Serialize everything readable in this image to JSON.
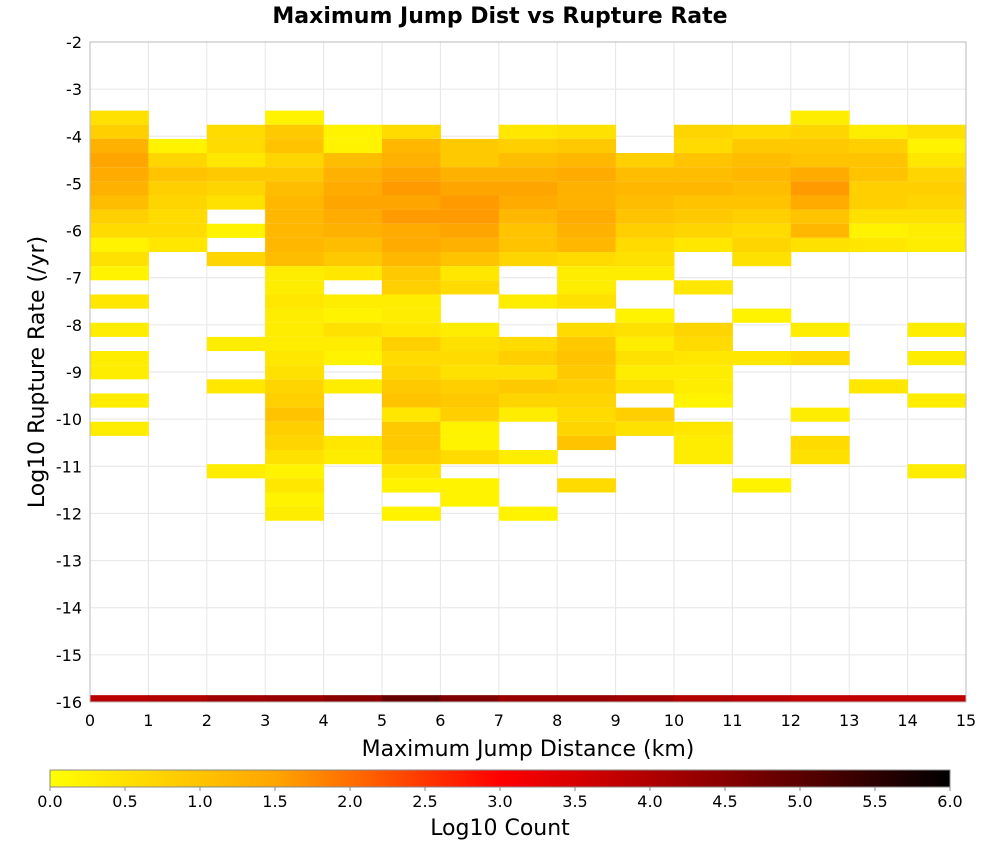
{
  "chart_data": {
    "type": "heatmap",
    "title": "Maximum Jump Dist vs Rupture Rate",
    "xlabel": "Maximum Jump Distance (km)",
    "ylabel": "Log10 Rupture Rate (/yr)",
    "xlim": [
      0,
      15
    ],
    "ylim": [
      -16,
      -2
    ],
    "x_ticks": [
      "0",
      "1",
      "2",
      "3",
      "4",
      "5",
      "6",
      "7",
      "8",
      "9",
      "10",
      "11",
      "12",
      "13",
      "14",
      "15"
    ],
    "y_ticks": [
      "-2",
      "-3",
      "-4",
      "-5",
      "-6",
      "-7",
      "-8",
      "-9",
      "-10",
      "-11",
      "-12",
      "-13",
      "-14",
      "-15",
      "-16"
    ],
    "grid": true,
    "x_bin_width": 1,
    "y_bin_height": 0.29,
    "colorbar": {
      "label": "Log10 Count",
      "range": [
        0,
        6
      ],
      "ticks": [
        "0.0",
        "0.5",
        "1.0",
        "1.5",
        "2.0",
        "2.5",
        "3.0",
        "3.5",
        "4.0",
        "4.5",
        "5.0",
        "5.5",
        "6.0"
      ],
      "colors": [
        "#ffff00",
        "#ffa500",
        "#ff0000",
        "#880000",
        "#000000"
      ]
    },
    "cells": [
      {
        "x": 0,
        "bins": [
          [
            -3.6,
            0.5
          ],
          [
            -3.9,
            0.8
          ],
          [
            -4.2,
            1.3
          ],
          [
            -4.5,
            1.5
          ],
          [
            -4.8,
            1.4
          ],
          [
            -5.1,
            1.3
          ],
          [
            -5.4,
            1.1
          ],
          [
            -5.7,
            0.8
          ],
          [
            -6.0,
            0.6
          ],
          [
            -6.3,
            0.2
          ],
          [
            -6.6,
            0.5
          ],
          [
            -6.9,
            0.2
          ],
          [
            -7.5,
            0.4
          ],
          [
            -8.1,
            0.3
          ],
          [
            -8.7,
            0.3
          ],
          [
            -9.0,
            0.3
          ],
          [
            -9.6,
            0.3
          ],
          [
            -10.2,
            0.3
          ]
        ]
      },
      {
        "x": 1,
        "bins": [
          [
            -4.2,
            0.2
          ],
          [
            -4.5,
            0.7
          ],
          [
            -4.8,
            1.0
          ],
          [
            -5.1,
            0.8
          ],
          [
            -5.4,
            0.7
          ],
          [
            -5.7,
            0.6
          ],
          [
            -6.0,
            0.6
          ],
          [
            -6.3,
            0.4
          ]
        ]
      },
      {
        "x": 2,
        "bins": [
          [
            -3.9,
            0.6
          ],
          [
            -4.2,
            0.6
          ],
          [
            -4.5,
            0.4
          ],
          [
            -4.8,
            0.9
          ],
          [
            -5.1,
            0.7
          ],
          [
            -5.4,
            0.5
          ],
          [
            -6.0,
            0.2
          ],
          [
            -6.6,
            0.7
          ],
          [
            -8.4,
            0.3
          ],
          [
            -9.3,
            0.4
          ],
          [
            -11.1,
            0.3
          ]
        ]
      },
      {
        "x": 3,
        "bins": [
          [
            -3.6,
            0.2
          ],
          [
            -3.9,
            0.9
          ],
          [
            -4.2,
            1.0
          ],
          [
            -4.5,
            0.7
          ],
          [
            -4.8,
            0.9
          ],
          [
            -5.1,
            1.1
          ],
          [
            -5.4,
            1.2
          ],
          [
            -5.7,
            1.2
          ],
          [
            -6.0,
            1.2
          ],
          [
            -6.3,
            1.2
          ],
          [
            -6.6,
            1.1
          ],
          [
            -6.9,
            0.3
          ],
          [
            -7.2,
            0.3
          ],
          [
            -7.5,
            0.4
          ],
          [
            -7.8,
            0.3
          ],
          [
            -8.1,
            0.3
          ],
          [
            -8.4,
            0.3
          ],
          [
            -8.7,
            0.4
          ],
          [
            -9.0,
            0.5
          ],
          [
            -9.3,
            0.7
          ],
          [
            -9.6,
            0.8
          ],
          [
            -9.9,
            1.0
          ],
          [
            -10.2,
            0.8
          ],
          [
            -10.5,
            0.7
          ],
          [
            -10.8,
            0.5
          ],
          [
            -11.1,
            0.2
          ],
          [
            -11.4,
            0.4
          ],
          [
            -11.7,
            0.2
          ],
          [
            -12.0,
            0.3
          ]
        ]
      },
      {
        "x": 4,
        "bins": [
          [
            -3.9,
            0.2
          ],
          [
            -4.2,
            0.2
          ],
          [
            -4.5,
            1.1
          ],
          [
            -4.8,
            1.3
          ],
          [
            -5.1,
            1.4
          ],
          [
            -5.4,
            1.5
          ],
          [
            -5.7,
            1.4
          ],
          [
            -6.0,
            1.3
          ],
          [
            -6.3,
            1.1
          ],
          [
            -6.6,
            0.9
          ],
          [
            -6.9,
            0.4
          ],
          [
            -7.5,
            0.3
          ],
          [
            -7.8,
            0.2
          ],
          [
            -8.1,
            0.5
          ],
          [
            -8.4,
            0.3
          ],
          [
            -8.7,
            0.2
          ],
          [
            -9.3,
            0.3
          ],
          [
            -10.5,
            0.4
          ],
          [
            -10.8,
            0.3
          ]
        ]
      },
      {
        "x": 5,
        "bins": [
          [
            -3.9,
            0.6
          ],
          [
            -4.2,
            1.2
          ],
          [
            -4.5,
            1.3
          ],
          [
            -4.8,
            1.5
          ],
          [
            -5.1,
            1.6
          ],
          [
            -5.4,
            1.5
          ],
          [
            -5.7,
            1.6
          ],
          [
            -6.0,
            1.4
          ],
          [
            -6.3,
            1.4
          ],
          [
            -6.6,
            1.2
          ],
          [
            -6.9,
            0.9
          ],
          [
            -7.2,
            0.8
          ],
          [
            -7.5,
            0.3
          ],
          [
            -7.8,
            0.3
          ],
          [
            -8.1,
            0.4
          ],
          [
            -8.4,
            0.8
          ],
          [
            -8.7,
            0.6
          ],
          [
            -9.0,
            0.7
          ],
          [
            -9.3,
            0.9
          ],
          [
            -9.6,
            1.0
          ],
          [
            -9.9,
            0.4
          ],
          [
            -10.2,
            0.9
          ],
          [
            -10.5,
            0.9
          ],
          [
            -10.8,
            0.8
          ],
          [
            -11.1,
            0.4
          ],
          [
            -11.4,
            0.2
          ],
          [
            -12.0,
            0.2
          ]
        ]
      },
      {
        "x": 6,
        "bins": [
          [
            -4.2,
            0.9
          ],
          [
            -4.5,
            0.9
          ],
          [
            -4.8,
            1.3
          ],
          [
            -5.1,
            1.5
          ],
          [
            -5.4,
            1.6
          ],
          [
            -5.7,
            1.6
          ],
          [
            -6.0,
            1.5
          ],
          [
            -6.3,
            1.3
          ],
          [
            -6.6,
            1.0
          ],
          [
            -6.9,
            0.4
          ],
          [
            -7.2,
            0.6
          ],
          [
            -8.1,
            0.3
          ],
          [
            -8.4,
            0.5
          ],
          [
            -8.7,
            0.6
          ],
          [
            -9.0,
            0.5
          ],
          [
            -9.3,
            0.8
          ],
          [
            -9.6,
            0.9
          ],
          [
            -9.9,
            0.8
          ],
          [
            -10.2,
            0.2
          ],
          [
            -10.5,
            0.2
          ],
          [
            -10.8,
            0.6
          ],
          [
            -11.4,
            0.2
          ],
          [
            -11.7,
            0.2
          ]
        ]
      },
      {
        "x": 7,
        "bins": [
          [
            -3.9,
            0.4
          ],
          [
            -4.2,
            0.8
          ],
          [
            -4.5,
            1.1
          ],
          [
            -4.8,
            1.3
          ],
          [
            -5.1,
            1.5
          ],
          [
            -5.4,
            1.4
          ],
          [
            -5.7,
            1.2
          ],
          [
            -6.0,
            1.0
          ],
          [
            -6.3,
            1.0
          ],
          [
            -6.6,
            0.7
          ],
          [
            -7.5,
            0.3
          ],
          [
            -8.4,
            0.6
          ],
          [
            -8.7,
            0.8
          ],
          [
            -9.0,
            0.5
          ],
          [
            -9.3,
            0.9
          ],
          [
            -9.6,
            0.7
          ],
          [
            -9.9,
            0.3
          ],
          [
            -10.8,
            0.3
          ],
          [
            -12.0,
            0.2
          ]
        ]
      },
      {
        "x": 8,
        "bins": [
          [
            -3.9,
            0.5
          ],
          [
            -4.2,
            0.9
          ],
          [
            -4.5,
            1.2
          ],
          [
            -4.8,
            1.4
          ],
          [
            -5.1,
            1.3
          ],
          [
            -5.4,
            1.3
          ],
          [
            -5.7,
            1.4
          ],
          [
            -6.0,
            1.3
          ],
          [
            -6.3,
            1.2
          ],
          [
            -6.6,
            0.6
          ],
          [
            -6.9,
            0.3
          ],
          [
            -7.2,
            0.3
          ],
          [
            -7.5,
            0.5
          ],
          [
            -8.1,
            0.6
          ],
          [
            -8.4,
            0.9
          ],
          [
            -8.7,
            1.0
          ],
          [
            -9.0,
            0.9
          ],
          [
            -9.3,
            0.8
          ],
          [
            -9.6,
            0.7
          ],
          [
            -9.9,
            0.6
          ],
          [
            -10.2,
            0.7
          ],
          [
            -10.5,
            1.0
          ],
          [
            -11.4,
            0.6
          ]
        ]
      },
      {
        "x": 9,
        "bins": [
          [
            -4.5,
            0.8
          ],
          [
            -4.8,
            1.1
          ],
          [
            -5.1,
            1.2
          ],
          [
            -5.4,
            1.1
          ],
          [
            -5.7,
            1.0
          ],
          [
            -6.0,
            0.8
          ],
          [
            -6.3,
            0.6
          ],
          [
            -6.6,
            0.5
          ],
          [
            -6.9,
            0.3
          ],
          [
            -7.8,
            0.2
          ],
          [
            -8.1,
            0.5
          ],
          [
            -8.4,
            0.3
          ],
          [
            -8.7,
            0.5
          ],
          [
            -9.0,
            0.3
          ],
          [
            -9.3,
            0.5
          ],
          [
            -9.9,
            0.8
          ],
          [
            -10.2,
            0.5
          ]
        ]
      },
      {
        "x": 10,
        "bins": [
          [
            -3.9,
            0.7
          ],
          [
            -4.2,
            0.6
          ],
          [
            -4.5,
            1.0
          ],
          [
            -4.8,
            1.1
          ],
          [
            -5.1,
            1.2
          ],
          [
            -5.4,
            1.0
          ],
          [
            -5.7,
            0.9
          ],
          [
            -6.0,
            0.7
          ],
          [
            -6.3,
            0.4
          ],
          [
            -7.2,
            0.4
          ],
          [
            -8.1,
            0.7
          ],
          [
            -8.4,
            0.6
          ],
          [
            -8.7,
            0.4
          ],
          [
            -9.0,
            0.3
          ],
          [
            -9.3,
            0.3
          ],
          [
            -9.6,
            0.2
          ],
          [
            -10.2,
            0.4
          ],
          [
            -10.5,
            0.3
          ],
          [
            -10.8,
            0.3
          ]
        ]
      },
      {
        "x": 11,
        "bins": [
          [
            -3.9,
            0.6
          ],
          [
            -4.2,
            0.9
          ],
          [
            -4.5,
            1.1
          ],
          [
            -4.8,
            1.2
          ],
          [
            -5.1,
            1.1
          ],
          [
            -5.4,
            1.0
          ],
          [
            -5.7,
            0.8
          ],
          [
            -6.0,
            0.6
          ],
          [
            -6.3,
            0.7
          ],
          [
            -6.6,
            0.5
          ],
          [
            -7.8,
            0.2
          ],
          [
            -8.7,
            0.4
          ],
          [
            -11.4,
            0.2
          ]
        ]
      },
      {
        "x": 12,
        "bins": [
          [
            -3.6,
            0.3
          ],
          [
            -3.9,
            0.7
          ],
          [
            -4.2,
            0.9
          ],
          [
            -4.5,
            1.0
          ],
          [
            -4.8,
            1.4
          ],
          [
            -5.1,
            1.6
          ],
          [
            -5.4,
            1.4
          ],
          [
            -5.7,
            1.0
          ],
          [
            -6.0,
            1.2
          ],
          [
            -6.3,
            0.5
          ],
          [
            -8.1,
            0.3
          ],
          [
            -8.7,
            0.6
          ],
          [
            -9.9,
            0.3
          ],
          [
            -10.5,
            0.6
          ],
          [
            -10.8,
            0.5
          ]
        ]
      },
      {
        "x": 13,
        "bins": [
          [
            -3.9,
            0.3
          ],
          [
            -4.2,
            0.8
          ],
          [
            -4.5,
            1.0
          ],
          [
            -4.8,
            1.0
          ],
          [
            -5.1,
            0.8
          ],
          [
            -5.4,
            0.8
          ],
          [
            -5.7,
            0.5
          ],
          [
            -6.0,
            0.2
          ],
          [
            -6.3,
            0.4
          ],
          [
            -9.3,
            0.4
          ]
        ]
      },
      {
        "x": 14,
        "bins": [
          [
            -3.9,
            0.5
          ],
          [
            -4.2,
            0.2
          ],
          [
            -4.5,
            0.4
          ],
          [
            -4.8,
            0.7
          ],
          [
            -5.1,
            0.8
          ],
          [
            -5.4,
            0.7
          ],
          [
            -5.7,
            0.5
          ],
          [
            -6.0,
            0.3
          ],
          [
            -6.3,
            0.3
          ],
          [
            -8.1,
            0.3
          ],
          [
            -8.7,
            0.3
          ],
          [
            -9.6,
            0.3
          ],
          [
            -11.1,
            0.3
          ]
        ]
      }
    ],
    "bottom_row": {
      "y": -16,
      "values": [
        3.9,
        4.0,
        4.2,
        4.3,
        4.5,
        4.9,
        4.6,
        4.3,
        4.3,
        4.2,
        4.0,
        3.9,
        3.8,
        3.8,
        3.8
      ]
    }
  }
}
